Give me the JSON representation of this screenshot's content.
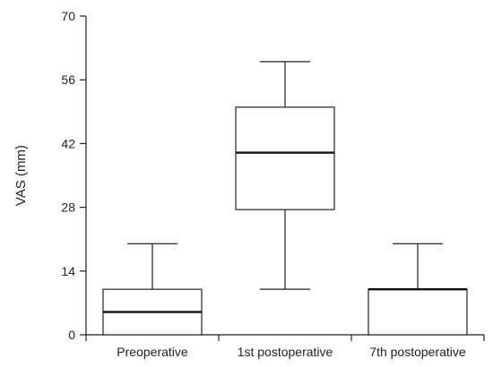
{
  "chart_data": {
    "type": "box",
    "title": "",
    "xlabel": "",
    "ylabel": "VAS  (mm)",
    "ylim": [
      0,
      70
    ],
    "yticks": [
      0,
      14,
      28,
      42,
      56,
      70
    ],
    "grid": false,
    "categories": [
      "Preoperative",
      "1st postoperative",
      "7th postoperative"
    ],
    "boxes": [
      {
        "category": "Preoperative",
        "min": 0,
        "q1": 0,
        "median": 5,
        "q3": 10,
        "max": 20
      },
      {
        "category": "1st postoperative",
        "min": 10,
        "q1": 27.5,
        "median": 40,
        "q3": 50,
        "max": 60
      },
      {
        "category": "7th postoperative",
        "min": 0,
        "q1": 0,
        "median": 10,
        "q3": 10,
        "max": 20
      }
    ]
  }
}
